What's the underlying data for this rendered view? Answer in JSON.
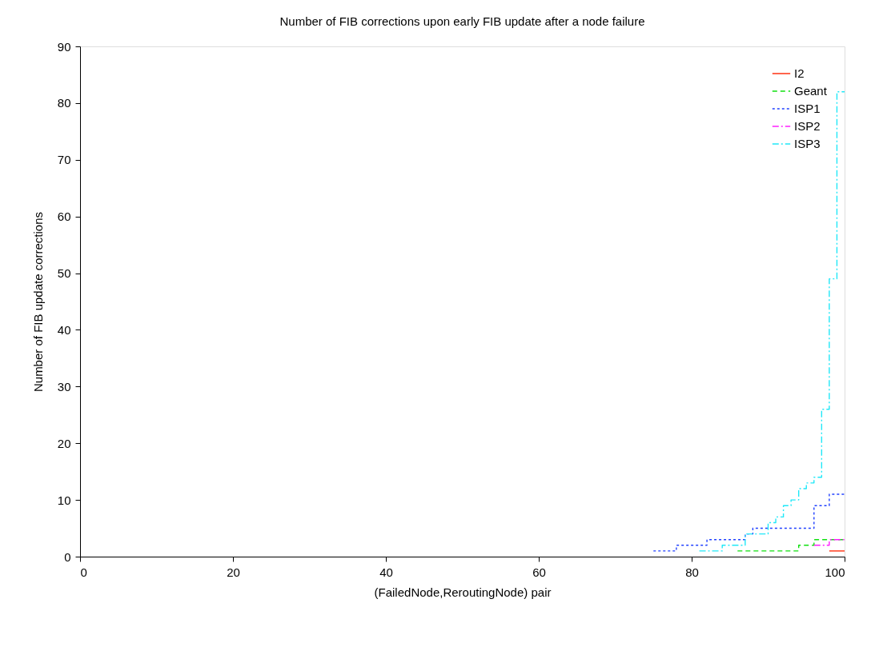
{
  "chart_data": {
    "type": "step",
    "title": "Number of FIB corrections upon early FIB update after a node failure",
    "xlabel": "(FailedNode,ReroutingNode) pair",
    "ylabel": "Number of FIB update corrections",
    "xlim": [
      0,
      100
    ],
    "xticks": [
      0,
      20,
      40,
      60,
      80,
      100
    ],
    "ylim": [
      0,
      90
    ],
    "yticks": [
      0,
      10,
      20,
      30,
      40,
      50,
      60,
      70,
      80,
      90
    ],
    "grid": false,
    "legend": "top right",
    "marker": "none",
    "series": [
      {
        "name": "I2",
        "color": "#ff3010",
        "line_style": "solid",
        "x": [
          98,
          100
        ],
        "values": [
          1,
          1
        ]
      },
      {
        "name": "Geant",
        "color": "#10e010",
        "line_style": "dashed",
        "x": [
          86,
          94,
          96,
          100
        ],
        "values": [
          1,
          2,
          3,
          3
        ]
      },
      {
        "name": "ISP1",
        "color": "#2040ff",
        "line_style": "dotted",
        "x": [
          75,
          78,
          82,
          87,
          88,
          96,
          98,
          100
        ],
        "values": [
          1,
          2,
          3,
          4,
          5,
          9,
          11,
          11
        ]
      },
      {
        "name": "ISP2",
        "color": "#ff20ff",
        "line_style": "dashdot",
        "x": [
          96,
          98,
          100
        ],
        "values": [
          2,
          3,
          3
        ]
      },
      {
        "name": "ISP3",
        "color": "#20e8f8",
        "line_style": "dashdot",
        "x": [
          81,
          84,
          87,
          90,
          91,
          92,
          93,
          94,
          95,
          96,
          97,
          98,
          99,
          100
        ],
        "values": [
          1,
          2,
          4,
          6,
          7,
          9,
          10,
          12,
          13,
          14,
          26,
          49,
          82,
          82
        ]
      }
    ]
  }
}
